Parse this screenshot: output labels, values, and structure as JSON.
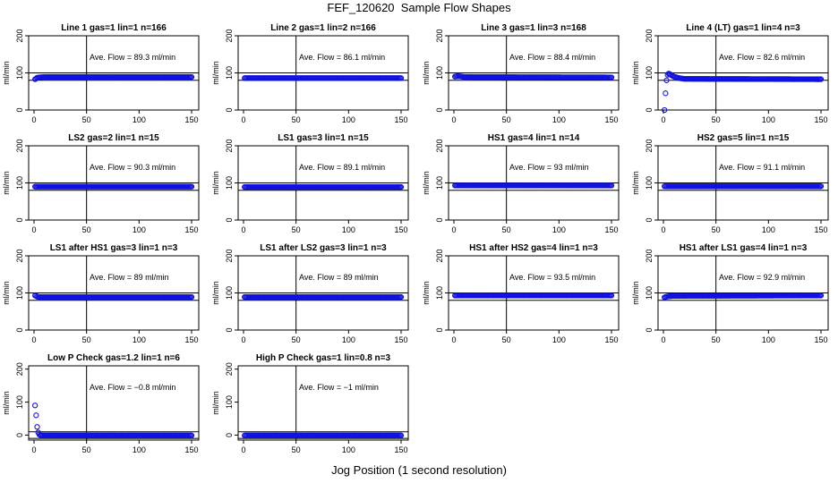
{
  "figure": {
    "title": "FEF_120620  Sample Flow Shapes",
    "xlabel": "Jog Position (1 second resolution)"
  },
  "chart_data": [
    {
      "type": "scatter",
      "title": "Line 1 gas=1 lin=1 n=166",
      "ylabel": "ml/min",
      "note": "Ave. Flow =  89.3  ml/min",
      "xlim": [
        0,
        150
      ],
      "ylim": [
        0,
        200
      ],
      "xticks": [
        "0",
        "50",
        "100",
        "150"
      ],
      "yticks": [
        "0",
        "100",
        "200"
      ],
      "hlines": [
        80,
        100
      ],
      "vline": 50,
      "series": [
        {
          "x": [
            1,
            2,
            3,
            5,
            10,
            150
          ],
          "y": [
            83,
            85,
            87,
            88,
            89,
            89
          ]
        }
      ]
    },
    {
      "type": "scatter",
      "title": "Line 2 gas=1 lin=2 n=166",
      "ylabel": "ml/min",
      "note": "Ave. Flow =  86.1  ml/min",
      "xlim": [
        0,
        150
      ],
      "ylim": [
        0,
        200
      ],
      "xticks": [
        "0",
        "50",
        "100",
        "150"
      ],
      "yticks": [
        "0",
        "100",
        "200"
      ],
      "hlines": [
        80,
        100
      ],
      "vline": 50,
      "series": [
        {
          "x": [
            1,
            150
          ],
          "y": [
            86,
            86
          ]
        }
      ]
    },
    {
      "type": "scatter",
      "title": "Line 3 gas=1 lin=3 n=168",
      "ylabel": "ml/min",
      "note": "Ave. Flow =  88.4  ml/min",
      "xlim": [
        0,
        150
      ],
      "ylim": [
        0,
        200
      ],
      "xticks": [
        "0",
        "50",
        "100",
        "150"
      ],
      "yticks": [
        "0",
        "100",
        "200"
      ],
      "hlines": [
        80,
        100
      ],
      "vline": 50,
      "series": [
        {
          "x": [
            1,
            3,
            5,
            10,
            150
          ],
          "y": [
            90,
            91,
            91,
            89,
            88
          ]
        }
      ]
    },
    {
      "type": "scatter",
      "title": "Line 4 (LT) gas=1 lin=4 n=3",
      "ylabel": "ml/min",
      "note": "Ave. Flow =  82.6  ml/min",
      "xlim": [
        0,
        150
      ],
      "ylim": [
        0,
        200
      ],
      "xticks": [
        "0",
        "50",
        "100",
        "150"
      ],
      "yticks": [
        "0",
        "100",
        "200"
      ],
      "hlines": [
        80,
        100
      ],
      "vline": 50,
      "series": [
        {
          "x": [
            1,
            2,
            3,
            4,
            5,
            6,
            7,
            8,
            10,
            15,
            20,
            150
          ],
          "y": [
            0,
            45,
            80,
            95,
            98,
            97,
            95,
            93,
            90,
            86,
            84,
            83
          ]
        }
      ]
    },
    {
      "type": "scatter",
      "title": "LS2 gas=2 lin=1 n=15",
      "ylabel": "ml/min",
      "note": "Ave. Flow =  90.3  ml/min",
      "xlim": [
        0,
        150
      ],
      "ylim": [
        0,
        200
      ],
      "xticks": [
        "0",
        "50",
        "100",
        "150"
      ],
      "yticks": [
        "0",
        "100",
        "200"
      ],
      "hlines": [
        80,
        100
      ],
      "vline": 50,
      "series": [
        {
          "x": [
            1,
            150
          ],
          "y": [
            90,
            90
          ]
        }
      ]
    },
    {
      "type": "scatter",
      "title": "LS1 gas=3 lin=1 n=15",
      "ylabel": "ml/min",
      "note": "Ave. Flow =  89.1  ml/min",
      "xlim": [
        0,
        150
      ],
      "ylim": [
        0,
        200
      ],
      "xticks": [
        "0",
        "50",
        "100",
        "150"
      ],
      "yticks": [
        "0",
        "100",
        "200"
      ],
      "hlines": [
        80,
        100
      ],
      "vline": 50,
      "series": [
        {
          "x": [
            1,
            150
          ],
          "y": [
            89,
            89
          ]
        }
      ]
    },
    {
      "type": "scatter",
      "title": "HS1 gas=4 lin=1 n=14",
      "ylabel": "ml/min",
      "note": "Ave. Flow =  93  ml/min",
      "xlim": [
        0,
        150
      ],
      "ylim": [
        0,
        200
      ],
      "xticks": [
        "0",
        "50",
        "100",
        "150"
      ],
      "yticks": [
        "0",
        "100",
        "200"
      ],
      "hlines": [
        80,
        100
      ],
      "vline": 50,
      "series": [
        {
          "x": [
            1,
            150
          ],
          "y": [
            93,
            93
          ]
        }
      ]
    },
    {
      "type": "scatter",
      "title": "HS2 gas=5 lin=1 n=15",
      "ylabel": "ml/min",
      "note": "Ave. Flow =  91.1  ml/min",
      "xlim": [
        0,
        150
      ],
      "ylim": [
        0,
        200
      ],
      "xticks": [
        "0",
        "50",
        "100",
        "150"
      ],
      "yticks": [
        "0",
        "100",
        "200"
      ],
      "hlines": [
        80,
        100
      ],
      "vline": 50,
      "series": [
        {
          "x": [
            1,
            150
          ],
          "y": [
            91,
            91
          ]
        }
      ]
    },
    {
      "type": "scatter",
      "title": "LS1 after HS1 gas=3 lin=1 n=3",
      "ylabel": "ml/min",
      "note": "Ave. Flow =  89  ml/min",
      "xlim": [
        0,
        150
      ],
      "ylim": [
        0,
        200
      ],
      "xticks": [
        "0",
        "50",
        "100",
        "150"
      ],
      "yticks": [
        "0",
        "100",
        "200"
      ],
      "hlines": [
        80,
        100
      ],
      "vline": 50,
      "series": [
        {
          "x": [
            1,
            2,
            3,
            5,
            10,
            150
          ],
          "y": [
            93,
            92,
            90,
            89,
            89,
            89
          ]
        }
      ]
    },
    {
      "type": "scatter",
      "title": "LS1 after LS2 gas=3 lin=1 n=3",
      "ylabel": "ml/min",
      "note": "Ave. Flow =  89  ml/min",
      "xlim": [
        0,
        150
      ],
      "ylim": [
        0,
        200
      ],
      "xticks": [
        "0",
        "50",
        "100",
        "150"
      ],
      "yticks": [
        "0",
        "100",
        "200"
      ],
      "hlines": [
        80,
        100
      ],
      "vline": 50,
      "series": [
        {
          "x": [
            1,
            150
          ],
          "y": [
            89,
            89
          ]
        }
      ]
    },
    {
      "type": "scatter",
      "title": "HS1 after HS2 gas=4 lin=1 n=3",
      "ylabel": "ml/min",
      "note": "Ave. Flow =  93.5  ml/min",
      "xlim": [
        0,
        150
      ],
      "ylim": [
        0,
        200
      ],
      "xticks": [
        "0",
        "50",
        "100",
        "150"
      ],
      "yticks": [
        "0",
        "100",
        "200"
      ],
      "hlines": [
        80,
        100
      ],
      "vline": 50,
      "series": [
        {
          "x": [
            1,
            150
          ],
          "y": [
            93,
            93
          ]
        }
      ]
    },
    {
      "type": "scatter",
      "title": "HS1 after LS1 gas=4 lin=1 n=3",
      "ylabel": "ml/min",
      "note": "Ave. Flow =  92.9  ml/min",
      "xlim": [
        0,
        150
      ],
      "ylim": [
        0,
        200
      ],
      "xticks": [
        "0",
        "50",
        "100",
        "150"
      ],
      "yticks": [
        "0",
        "100",
        "200"
      ],
      "hlines": [
        80,
        100
      ],
      "vline": 50,
      "series": [
        {
          "x": [
            1,
            2,
            3,
            5,
            10,
            150
          ],
          "y": [
            88,
            89,
            90,
            91,
            92,
            93
          ]
        }
      ]
    },
    {
      "type": "scatter",
      "title": "Low P Check gas=1.2 lin=1 n=6",
      "ylabel": "ml/min",
      "note": "Ave. Flow =  −0.8  ml/min",
      "xlim": [
        0,
        150
      ],
      "ylim": [
        -15,
        210
      ],
      "xticks": [
        "0",
        "50",
        "100",
        "150"
      ],
      "yticks": [
        "0",
        "100",
        "200"
      ],
      "hlines": [
        -10,
        10
      ],
      "vline": 50,
      "series": [
        {
          "x": [
            1,
            2,
            3,
            4,
            5,
            6,
            8,
            10,
            150
          ],
          "y": [
            90,
            60,
            25,
            8,
            2,
            0,
            -1,
            -1,
            -1
          ]
        }
      ]
    },
    {
      "type": "scatter",
      "title": "High P Check gas=1 lin=0.8 n=3",
      "ylabel": "ml/min",
      "note": "Ave. Flow =  −1  ml/min",
      "xlim": [
        0,
        150
      ],
      "ylim": [
        -15,
        210
      ],
      "xticks": [
        "0",
        "50",
        "100",
        "150"
      ],
      "yticks": [
        "0",
        "100",
        "200"
      ],
      "hlines": [
        -10,
        10
      ],
      "vline": 50,
      "series": [
        {
          "x": [
            1,
            150
          ],
          "y": [
            -1,
            -1
          ]
        }
      ]
    }
  ],
  "colors": {
    "points": "#1010e0",
    "axes": "#000000"
  }
}
